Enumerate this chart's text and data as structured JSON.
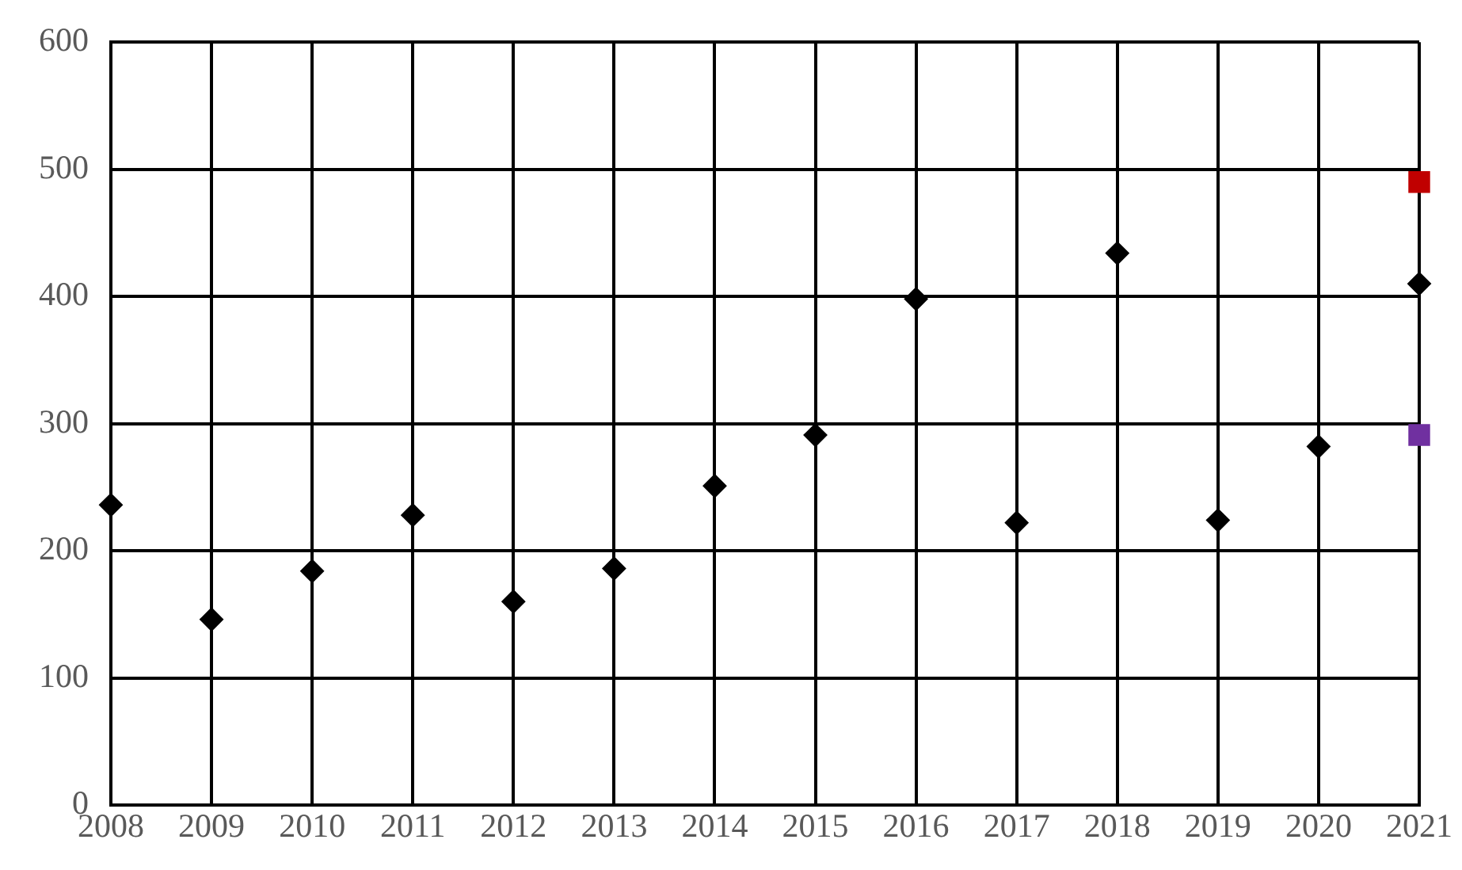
{
  "chart_data": {
    "type": "scatter",
    "marker": "diamond",
    "grid": true,
    "xlim": [
      2008,
      2021
    ],
    "xticks": [
      2008,
      2009,
      2010,
      2011,
      2012,
      2013,
      2014,
      2015,
      2016,
      2017,
      2018,
      2019,
      2020,
      2021
    ],
    "ylim": [
      0,
      600
    ],
    "yticks": [
      0,
      100,
      200,
      300,
      400,
      500,
      600
    ],
    "legend": false,
    "series": [
      {
        "color": "#000000",
        "x": [
          2008,
          2009,
          2010,
          2011,
          2012,
          2013,
          2014,
          2015,
          2016,
          2017,
          2018,
          2019,
          2020,
          2021
        ],
        "values": [
          236,
          146,
          184,
          228,
          160,
          186,
          251,
          291,
          398,
          222,
          434,
          224,
          282,
          410
        ]
      },
      {
        "color": "#c00000",
        "marker": "square",
        "x": [
          2021
        ],
        "values": [
          490
        ]
      },
      {
        "color": "#7030a0",
        "marker": "square",
        "x": [
          2021
        ],
        "values": [
          291
        ]
      }
    ]
  }
}
